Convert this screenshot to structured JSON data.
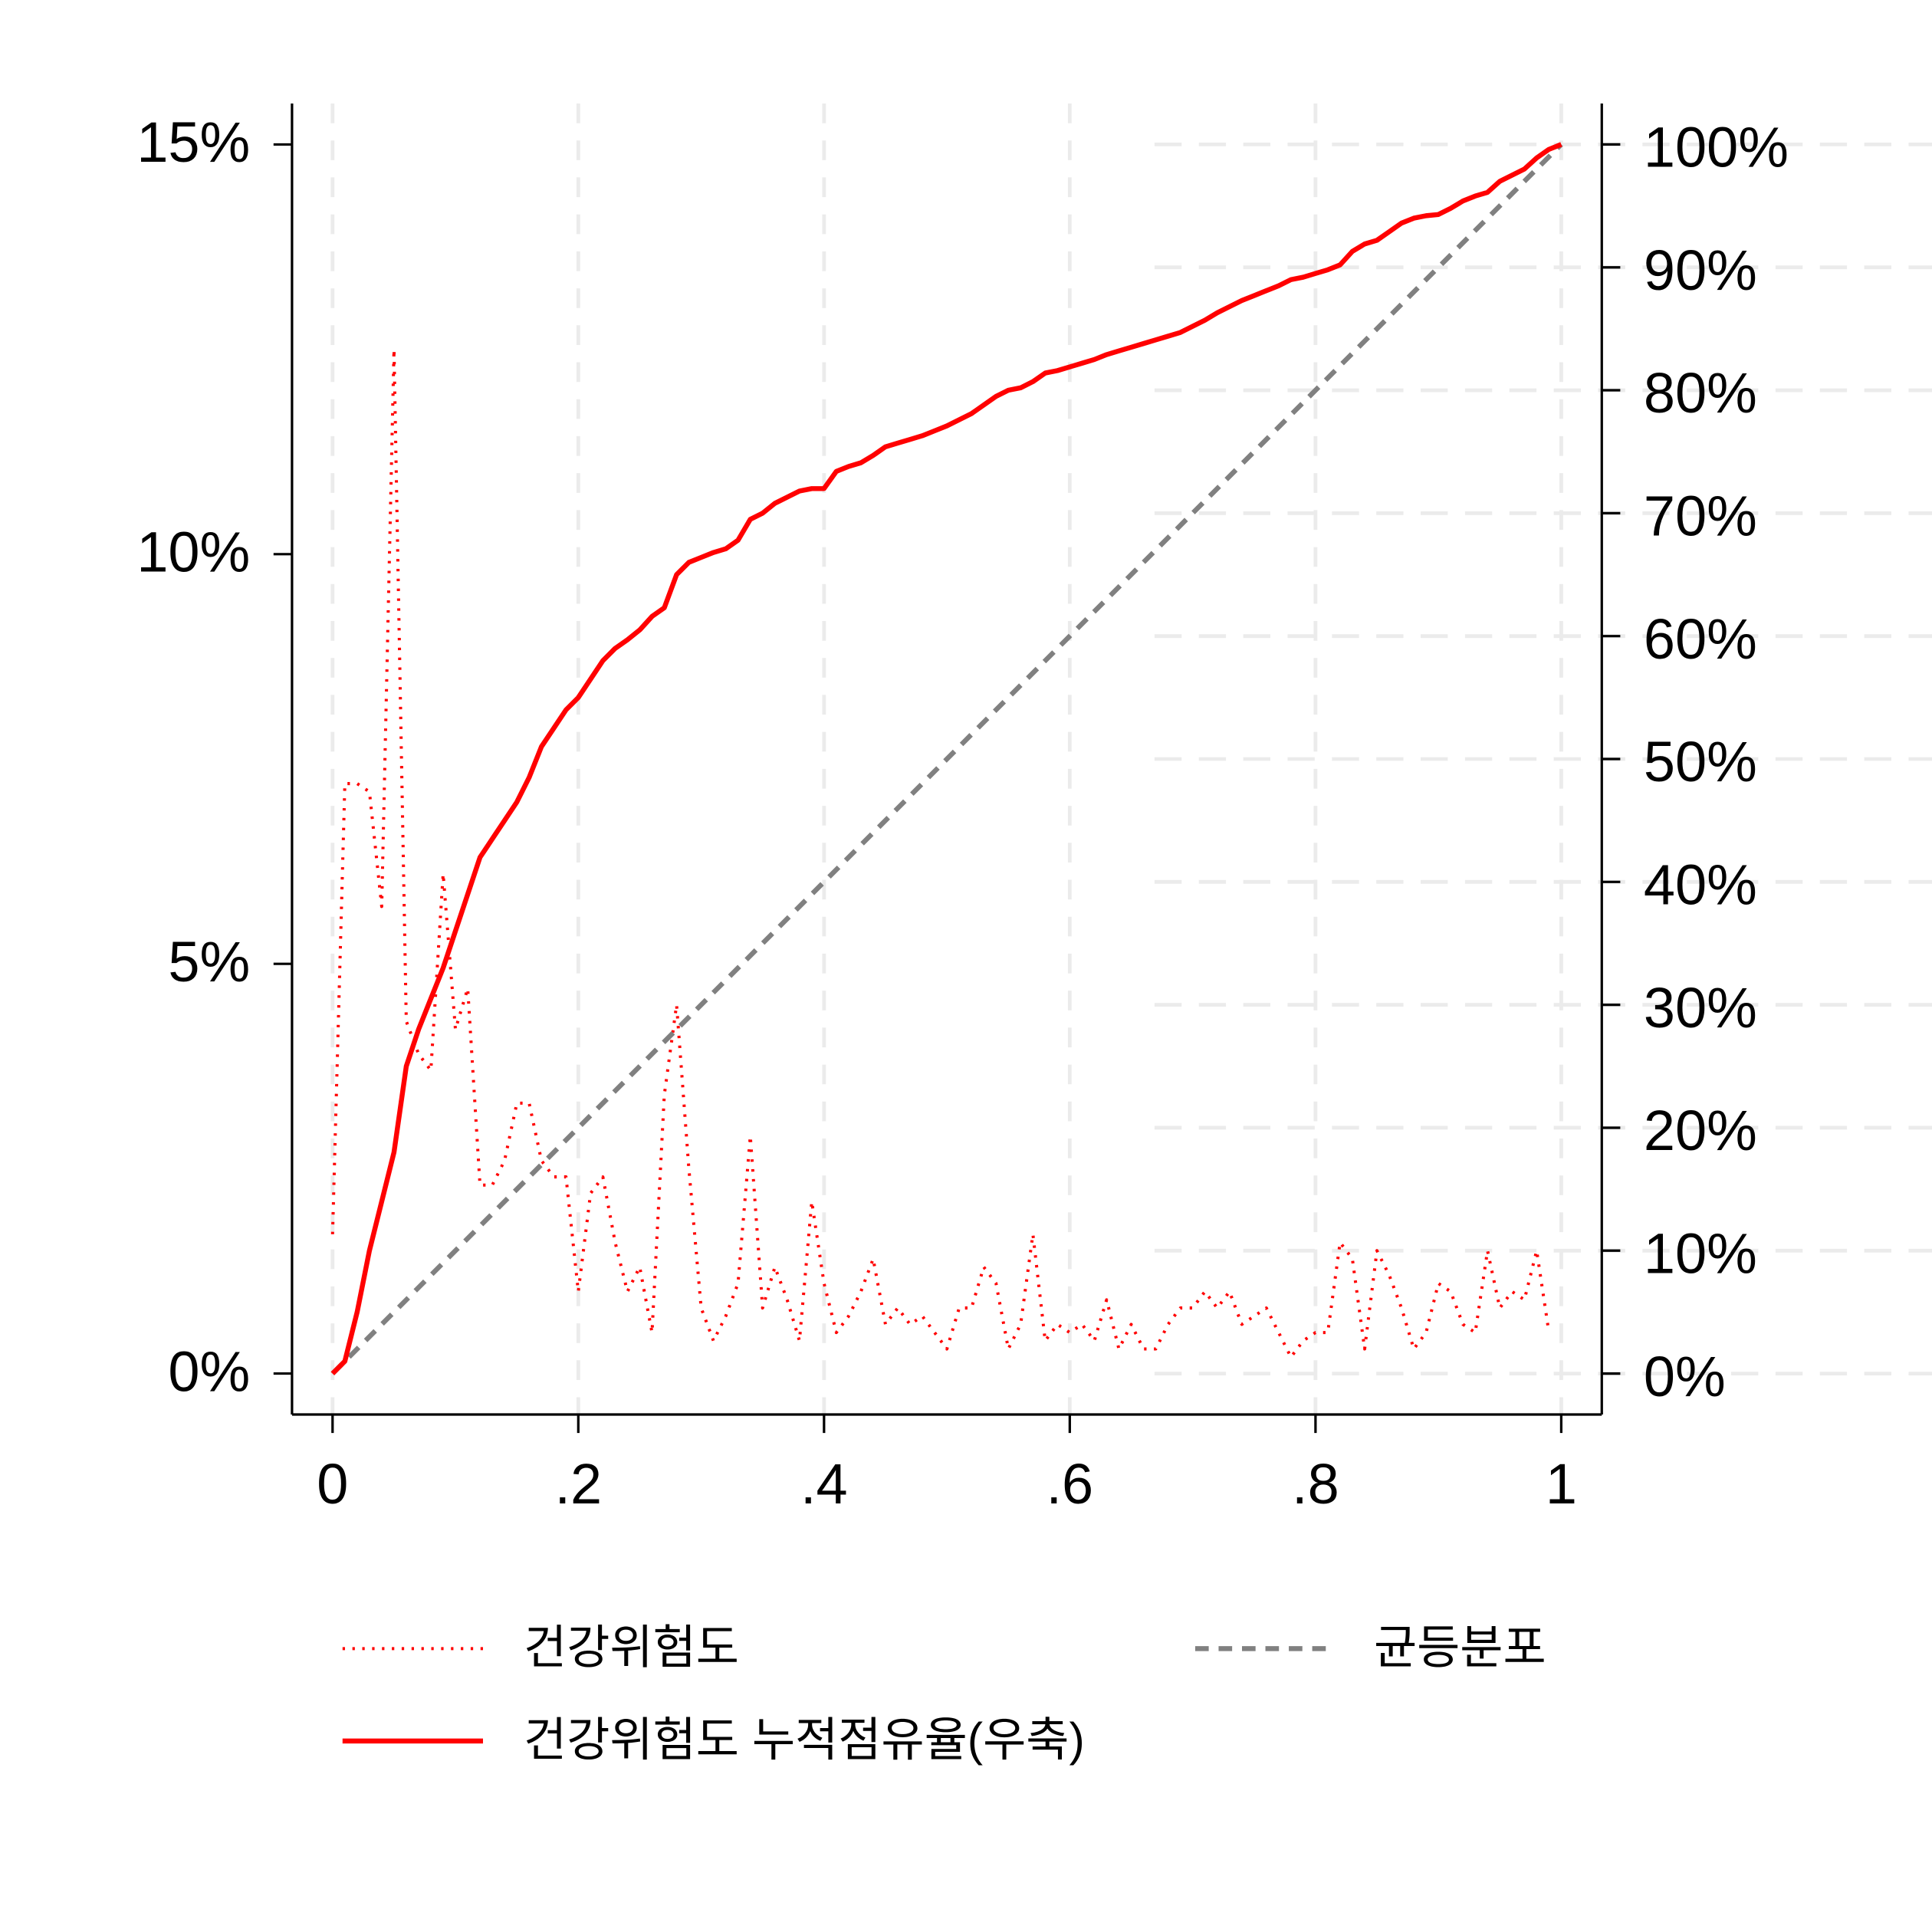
{
  "chart_data": {
    "type": "line",
    "x": [
      0,
      0.01,
      0.02,
      0.03,
      0.04,
      0.05,
      0.06,
      0.07,
      0.08,
      0.09,
      0.1,
      0.11,
      0.12,
      0.13,
      0.14,
      0.15,
      0.16,
      0.17,
      0.18,
      0.19,
      0.2,
      0.21,
      0.22,
      0.23,
      0.24,
      0.25,
      0.26,
      0.27,
      0.28,
      0.29,
      0.3,
      0.31,
      0.32,
      0.33,
      0.34,
      0.35,
      0.36,
      0.37,
      0.38,
      0.39,
      0.4,
      0.41,
      0.42,
      0.43,
      0.44,
      0.45,
      0.46,
      0.47,
      0.48,
      0.49,
      0.5,
      0.51,
      0.52,
      0.53,
      0.54,
      0.55,
      0.56,
      0.57,
      0.58,
      0.59,
      0.6,
      0.61,
      0.62,
      0.63,
      0.64,
      0.65,
      0.66,
      0.67,
      0.68,
      0.69,
      0.7,
      0.71,
      0.72,
      0.73,
      0.74,
      0.75,
      0.76,
      0.77,
      0.78,
      0.79,
      0.8,
      0.81,
      0.82,
      0.83,
      0.84,
      0.85,
      0.86,
      0.87,
      0.88,
      0.89,
      0.9,
      0.91,
      0.92,
      0.93,
      0.94,
      0.95,
      0.96,
      0.97,
      0.98,
      0.99,
      1
    ],
    "series": [
      {
        "name": "건강위험도",
        "color": "#ff0000",
        "line_style": "dotted",
        "values": [
          1.7,
          7.2,
          7.2,
          7.1,
          5.7,
          12.5,
          4.3,
          3.9,
          3.7,
          6.1,
          4.2,
          4.7,
          2.3,
          2.3,
          2.6,
          3.3,
          3.3,
          2.6,
          2.4,
          2.4,
          1.0,
          2.2,
          2.4,
          1.6,
          1.0,
          1.3,
          0.5,
          3.4,
          4.5,
          2.5,
          0.8,
          0.4,
          0.7,
          1.1,
          2.9,
          0.8,
          1.3,
          0.9,
          0.4,
          2.1,
          1.1,
          0.5,
          0.7,
          1.0,
          1.4,
          0.6,
          0.8,
          0.6,
          0.7,
          0.5,
          0.3,
          0.8,
          0.8,
          1.3,
          1.1,
          0.3,
          0.6,
          1.7,
          0.4,
          0.6,
          0.5,
          0.6,
          0.4,
          0.9,
          0.3,
          0.6,
          0.3,
          0.3,
          0.6,
          0.8,
          0.8,
          1.0,
          0.8,
          1.0,
          0.6,
          0.7,
          0.8,
          0.5,
          0.2,
          0.4,
          0.5,
          0.5,
          1.6,
          1.4,
          0.3,
          1.5,
          1.2,
          0.8,
          0.3,
          0.5,
          1.1,
          1.0,
          0.6,
          0.5,
          1.5,
          0.8,
          1.0,
          0.9,
          1.5,
          0.5,
          null
        ]
      },
      {
        "name": "건강위험도 누적점유율(우축)",
        "color": "#ff0000",
        "line_style": "solid",
        "axis": "y2",
        "values": [
          0,
          1,
          5,
          10,
          14,
          18,
          25,
          28,
          30.5,
          33,
          36,
          39,
          42,
          43.5,
          45,
          46.5,
          48.5,
          51,
          52.5,
          54,
          55,
          56.5,
          58,
          59,
          59.7,
          60.5,
          61.6,
          62.3,
          65,
          66,
          66.4,
          66.8,
          67.1,
          67.8,
          69.5,
          70,
          70.8,
          71.3,
          71.8,
          72,
          72,
          73.4,
          73.8,
          74.1,
          74.7,
          75.4,
          75.7,
          76,
          76.3,
          76.7,
          77.1,
          77.6,
          78.1,
          78.8,
          79.5,
          80,
          80.2,
          80.7,
          81.4,
          81.6,
          81.9,
          82.2,
          82.5,
          82.9,
          83.2,
          83.5,
          83.8,
          84.1,
          84.4,
          84.7,
          85.2,
          85.7,
          86.3,
          86.8,
          87.3,
          87.7,
          88.1,
          88.5,
          89,
          89.2,
          89.5,
          89.8,
          90.2,
          91.3,
          91.9,
          92.2,
          92.9,
          93.6,
          94,
          94.2,
          94.3,
          94.8,
          95.4,
          95.8,
          96.1,
          97,
          97.5,
          98,
          98.9,
          99.6,
          100
        ]
      },
      {
        "name": "균등분포",
        "color": "#808080",
        "line_style": "dashed",
        "axis": "y2",
        "x": [
          0,
          1
        ],
        "values": [
          0,
          100
        ]
      }
    ],
    "xlim": [
      -0.033,
      1.033
    ],
    "xticks": [
      0,
      {
        "value": 0.2,
        "label": ".2"
      },
      {
        "value": 0.4,
        "label": ".4"
      },
      {
        "value": 0.6,
        "label": ".6"
      },
      {
        "value": 0.8,
        "label": ".8"
      },
      1
    ],
    "ylim": [
      -0.5,
      15.5
    ],
    "yticks": [
      {
        "value": 0,
        "label": "0%"
      },
      {
        "value": 5,
        "label": "5%"
      },
      {
        "value": 10,
        "label": "10%"
      },
      {
        "value": 15,
        "label": "15%"
      }
    ],
    "y2lim": [
      -3.33,
      103.33
    ],
    "y2ticks": [
      {
        "value": 0,
        "label": "0%"
      },
      {
        "value": 10,
        "label": "10%"
      },
      {
        "value": 20,
        "label": "20%"
      },
      {
        "value": 30,
        "label": "30%"
      },
      {
        "value": 40,
        "label": "40%"
      },
      {
        "value": 50,
        "label": "50%"
      },
      {
        "value": 60,
        "label": "60%"
      },
      {
        "value": 70,
        "label": "70%"
      },
      {
        "value": 80,
        "label": "80%"
      },
      {
        "value": 90,
        "label": "90%"
      },
      {
        "value": 100,
        "label": "100%"
      }
    ],
    "grid": true,
    "legend": "bottom"
  }
}
